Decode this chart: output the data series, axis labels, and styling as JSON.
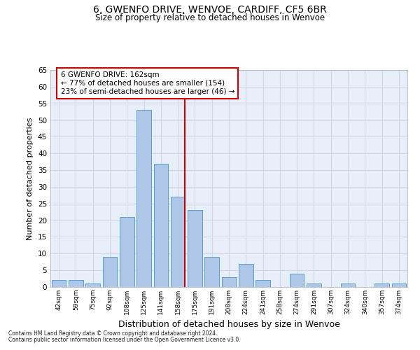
{
  "title1": "6, GWENFO DRIVE, WENVOE, CARDIFF, CF5 6BR",
  "title2": "Size of property relative to detached houses in Wenvoe",
  "xlabel": "Distribution of detached houses by size in Wenvoe",
  "ylabel": "Number of detached properties",
  "footnote1": "Contains HM Land Registry data © Crown copyright and database right 2024.",
  "footnote2": "Contains public sector information licensed under the Open Government Licence v3.0.",
  "annotation_line1": "6 GWENFO DRIVE: 162sqm",
  "annotation_line2": "← 77% of detached houses are smaller (154)",
  "annotation_line3": "23% of semi-detached houses are larger (46) →",
  "categories": [
    "42sqm",
    "59sqm",
    "75sqm",
    "92sqm",
    "108sqm",
    "125sqm",
    "141sqm",
    "158sqm",
    "175sqm",
    "191sqm",
    "208sqm",
    "224sqm",
    "241sqm",
    "258sqm",
    "274sqm",
    "291sqm",
    "307sqm",
    "324sqm",
    "340sqm",
    "357sqm",
    "374sqm"
  ],
  "values": [
    2,
    2,
    1,
    9,
    21,
    53,
    37,
    27,
    23,
    9,
    3,
    7,
    2,
    0,
    4,
    1,
    0,
    1,
    0,
    1,
    1
  ],
  "bar_color": "#aec6e8",
  "bar_edge_color": "#5a9fd4",
  "vline_x_index": 7,
  "vline_color": "#cc0000",
  "ylim": [
    0,
    65
  ],
  "yticks": [
    0,
    5,
    10,
    15,
    20,
    25,
    30,
    35,
    40,
    45,
    50,
    55,
    60,
    65
  ],
  "grid_color": "#d0d8e8",
  "background_color": "#e8eef8",
  "annotation_box_edge_color": "#cc0000",
  "annotation_box_face_color": "#ffffff"
}
